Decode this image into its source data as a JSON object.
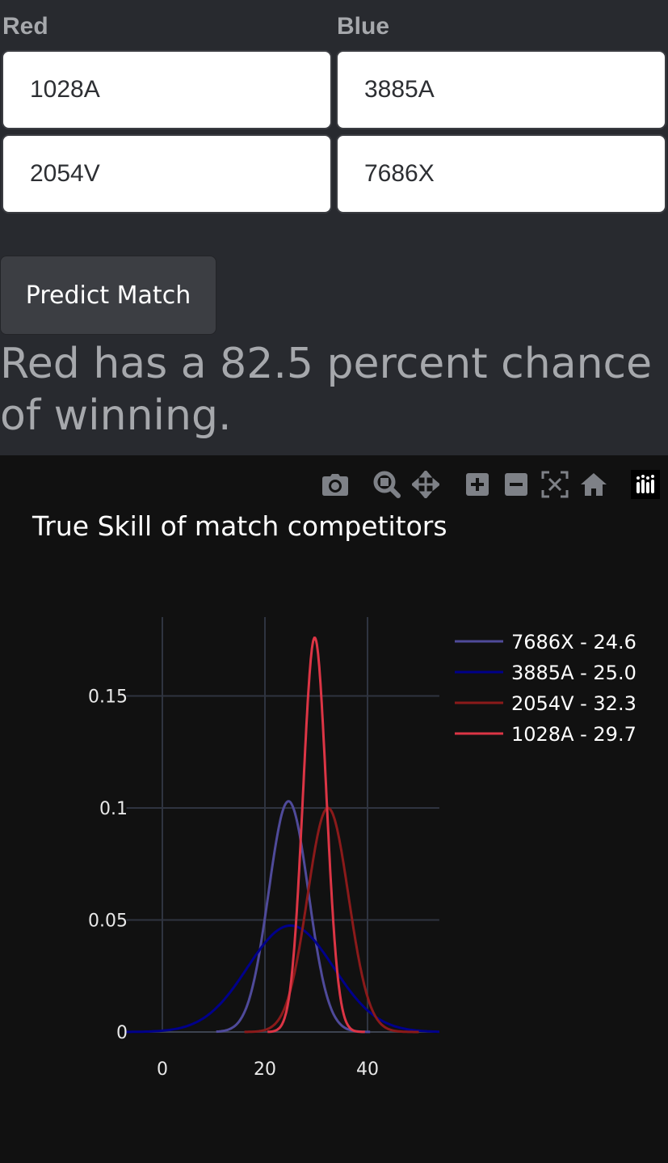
{
  "form": {
    "red_label": "Red",
    "blue_label": "Blue",
    "red_teams": [
      "1028A",
      "2054V"
    ],
    "blue_teams": [
      "3885A",
      "7686X"
    ],
    "predict_button": "Predict Match",
    "result_text": "Red has a 82.5 percent chance of winning."
  },
  "plot": {
    "modebar_icons": [
      "camera-icon",
      "zoom-icon",
      "pan-icon",
      "zoom-in-icon",
      "zoom-out-icon",
      "autoscale-icon",
      "reset-axes-icon",
      "plotly-logo-icon"
    ]
  },
  "chart_data": {
    "type": "line",
    "title": "True Skill of match competitors",
    "xlabel": "",
    "ylabel": "",
    "xlim": [
      -7,
      54
    ],
    "ylim": [
      0,
      0.185
    ],
    "xticks": [
      0,
      20,
      40
    ],
    "yticks": [
      0,
      0.05,
      0.1,
      0.15
    ],
    "ytick_labels": [
      "0",
      "0.05",
      "0.1",
      "0.15"
    ],
    "grid": true,
    "legend_position": "right",
    "series": [
      {
        "name": "7686X - 24.6",
        "mean": 24.6,
        "sigma": 3.88,
        "peak": 0.103,
        "x_start": 10.5,
        "x_end": 40.5,
        "color": "#4f4a9a"
      },
      {
        "name": "3885A - 25.0",
        "mean": 25.0,
        "sigma": 8.4,
        "peak": 0.0475,
        "x_start": -7,
        "x_end": 54,
        "color": "#00008b"
      },
      {
        "name": "2054V - 32.3",
        "mean": 32.3,
        "sigma": 4.0,
        "peak": 0.1,
        "x_start": 16,
        "x_end": 50,
        "color": "#8b1a1a"
      },
      {
        "name": "1028A - 29.7",
        "mean": 29.7,
        "sigma": 2.27,
        "peak": 0.176,
        "x_start": 20.5,
        "x_end": 39.5,
        "color": "#dc3545"
      }
    ]
  }
}
